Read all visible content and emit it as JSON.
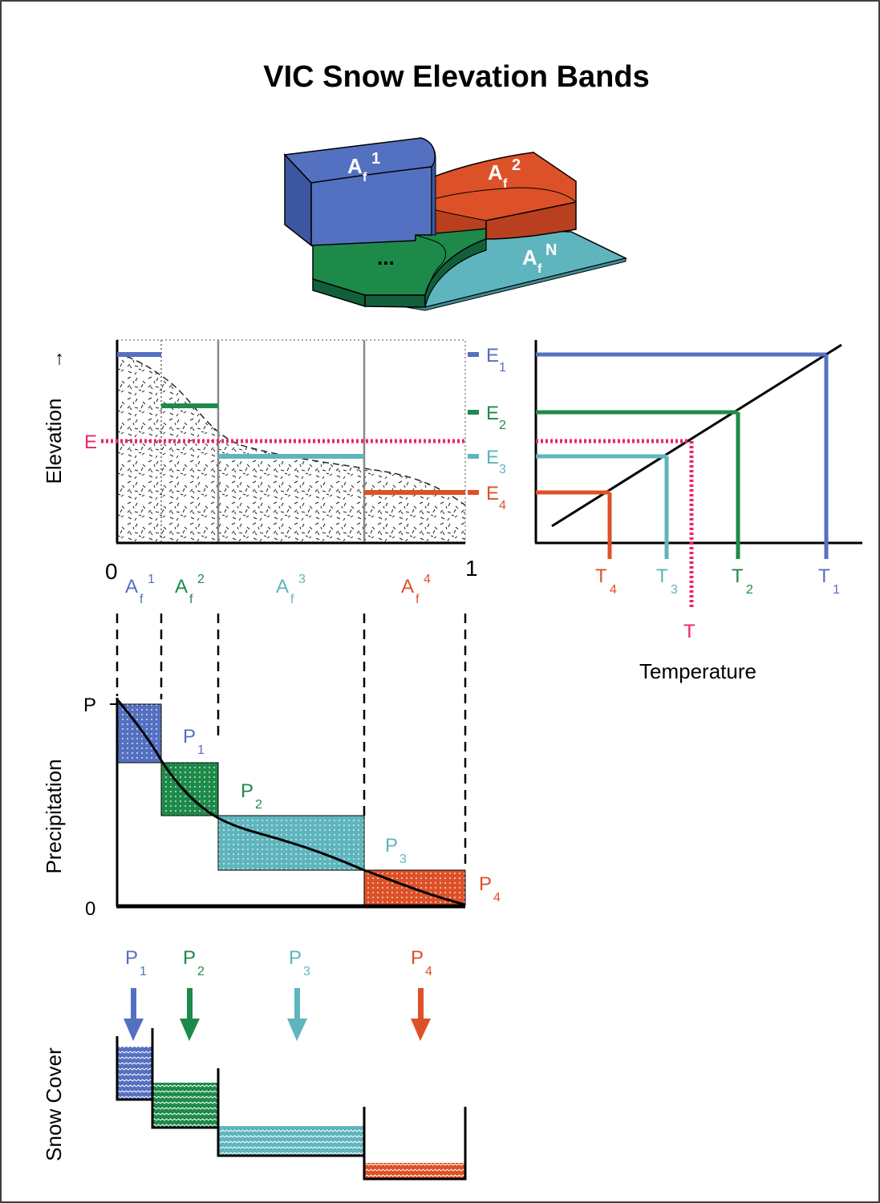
{
  "title": "VIC Snow Elevation Bands",
  "colors": {
    "blue": "#5470c1",
    "green": "#1e8a4a",
    "teal": "#5fb5bd",
    "red": "#dd5128",
    "pink": "#e8266a",
    "black": "#000000",
    "grey": "#888888"
  },
  "block": {
    "band1": {
      "main": "A",
      "sub": "f",
      "sup": "1"
    },
    "band2": {
      "main": "A",
      "sub": "f",
      "sup": "2"
    },
    "band3": {
      "main": "..."
    },
    "bandN": {
      "main": "A",
      "sub": "f",
      "sup": "N"
    }
  },
  "elevation_panel": {
    "ylabel": "Elevation",
    "ylabel_arrow": "→",
    "e_label": "E",
    "x_start": "0",
    "x_end": "1",
    "area_labels": [
      {
        "main": "A",
        "sub": "f",
        "sup": "1"
      },
      {
        "main": "A",
        "sub": "f",
        "sup": "2"
      },
      {
        "main": "A",
        "sub": "f",
        "sup": "3"
      },
      {
        "main": "A",
        "sub": "f",
        "sup": "4"
      }
    ],
    "band_labels": [
      {
        "main": "E",
        "sub": "1"
      },
      {
        "main": "E",
        "sub": "2"
      },
      {
        "main": "E",
        "sub": "3"
      },
      {
        "main": "E",
        "sub": "4"
      }
    ]
  },
  "temperature_panel": {
    "xlabel": "Temperature",
    "t_label": "T",
    "temp_labels": [
      {
        "main": "T",
        "sub": "4"
      },
      {
        "main": "T",
        "sub": "3"
      },
      {
        "main": "T",
        "sub": "2"
      },
      {
        "main": "T",
        "sub": "1"
      }
    ]
  },
  "precip_panel": {
    "ylabel": "Precipitation",
    "y_top": "P",
    "y_bottom": "0",
    "p_labels": [
      {
        "main": "P",
        "sub": "1"
      },
      {
        "main": "P",
        "sub": "2"
      },
      {
        "main": "P",
        "sub": "3"
      },
      {
        "main": "P",
        "sub": "4"
      }
    ]
  },
  "snow_panel": {
    "ylabel": "Snow Cover",
    "p_labels": [
      {
        "main": "P",
        "sub": "1"
      },
      {
        "main": "P",
        "sub": "2"
      },
      {
        "main": "P",
        "sub": "3"
      },
      {
        "main": "P",
        "sub": "4"
      }
    ]
  }
}
